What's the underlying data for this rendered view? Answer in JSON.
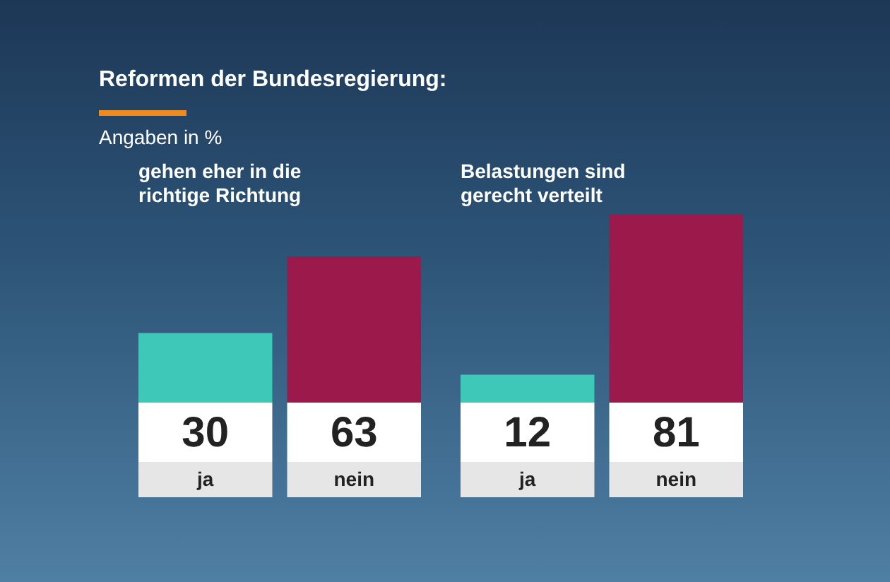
{
  "chart_data": [
    {
      "type": "other",
      "title": "Reformen der Bundesregierung:",
      "subtitle": "Angaben in %"
    },
    {
      "type": "bar",
      "title": "gehen eher in die richtige Richtung",
      "categories": [
        "ja",
        "nein"
      ],
      "values": [
        30,
        63
      ],
      "colors": [
        "#3ec8b8",
        "#9c1a4b"
      ],
      "data_labels": true
    },
    {
      "type": "bar",
      "title": "Belastungen sind gerecht verteilt",
      "categories": [
        "ja",
        "nein"
      ],
      "values": [
        12,
        81
      ],
      "colors": [
        "#3ec8b8",
        "#9c1a4b"
      ],
      "data_labels": true
    }
  ]
}
